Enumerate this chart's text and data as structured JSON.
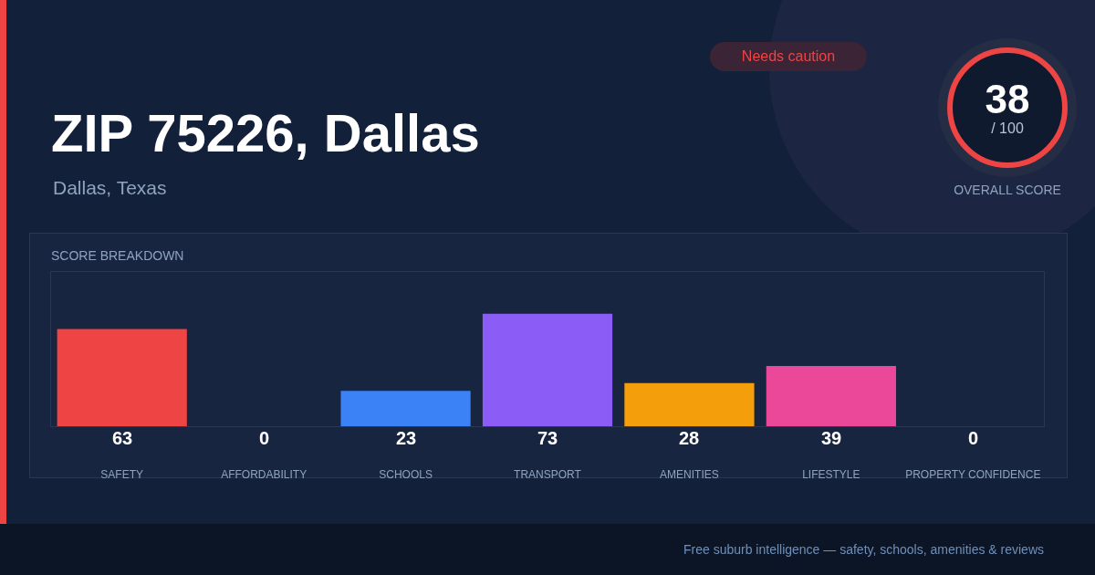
{
  "chart_data": [
    {
      "type": "bar",
      "title": "ZIP 75226, Dallas",
      "subtitle": "Dallas, Texas",
      "categories": [
        "SAFETY",
        "AFFORDABILITY",
        "SCHOOLS",
        "TRANSPORT",
        "AMENITIES",
        "LIFESTYLE",
        "PROPERTY CONFIDENCE"
      ],
      "values": [
        63,
        0,
        23,
        73,
        28,
        39,
        0
      ],
      "colors": [
        "#ef4444",
        "#10b981",
        "#3b82f6",
        "#8b5cf6",
        "#f59e0b",
        "#ec4899",
        "#1d6fd8"
      ],
      "ylim": [
        0,
        100
      ],
      "tick_labels": "x",
      "data_labels": true,
      "grid": false,
      "legend": false,
      "annotations": [
        "Needs caution",
        "SCORE BREAKDOWN",
        "Free suburb intelligence — safety, schools, amenities & reviews"
      ]
    },
    {
      "type": "other",
      "annotations": [
        "38",
        "/ 100",
        "OVERALL SCORE"
      ]
    }
  ]
}
